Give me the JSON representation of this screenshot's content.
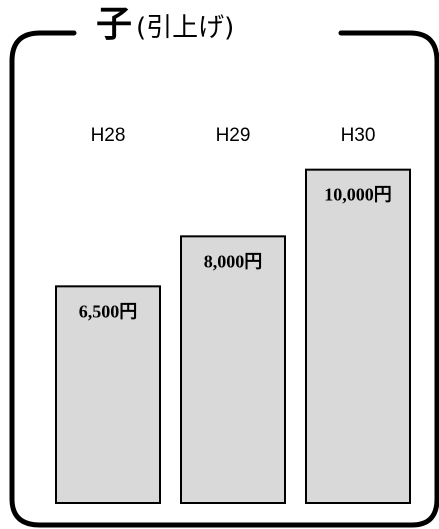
{
  "heading": {
    "main": "子",
    "sub": "(引上げ)"
  },
  "colors": {
    "bar_fill": "#d9d9d9",
    "bar_stroke": "#000000",
    "frame_stroke": "#000000"
  },
  "chart_data": {
    "type": "bar",
    "categories": [
      "H28",
      "H29",
      "H30"
    ],
    "values": [
      6500,
      8000,
      10000
    ],
    "data_labels": [
      "6,500円",
      "8,000円",
      "10,000円"
    ],
    "title": "子(引上げ)",
    "xlabel": "",
    "ylabel": "",
    "ylim": [
      0,
      12000
    ],
    "grid": false,
    "legend": "none"
  }
}
